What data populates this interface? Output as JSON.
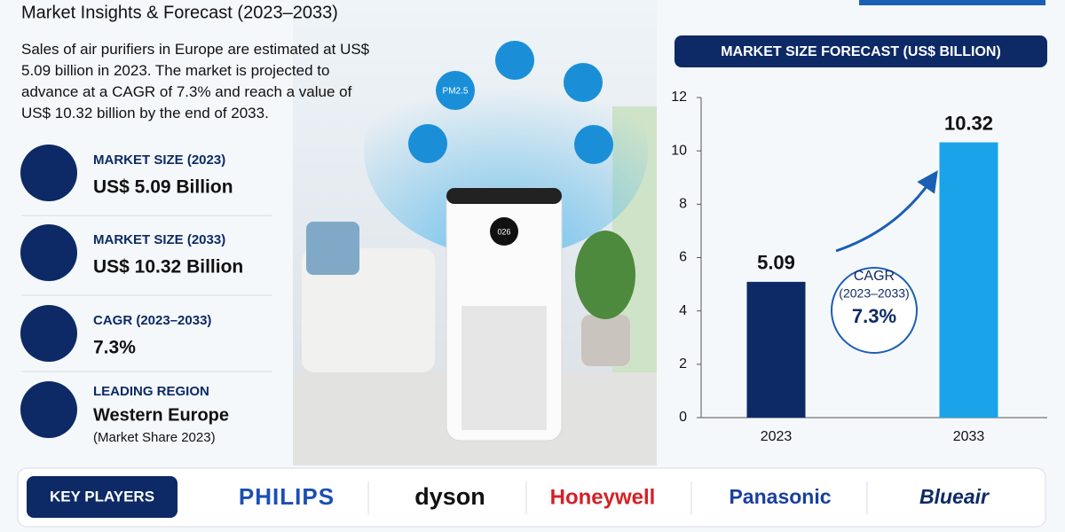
{
  "header": {
    "title": "Market Insights & Forecast (2023–2033)"
  },
  "description": "Sales of air purifiers in Europe are estimated at US$ 5.09 billion in 2023. The market is projected to advance at a CAGR of 7.3% and reach a value of US$ 10.32 billion by the end of 2033.",
  "stats": [
    {
      "label": "MARKET SIZE (2023)",
      "value": "US$ 5.09 Billion"
    },
    {
      "label": "MARKET SIZE (2033)",
      "value": "US$ 10.32 Billion"
    },
    {
      "label": "CAGR (2023–2033)",
      "value": "7.3%"
    },
    {
      "label": "LEADING REGION",
      "value": "Western Europe",
      "note": "(Market Share 2023)"
    }
  ],
  "illustration": {
    "icon_text": "PM2.5",
    "display": "026"
  },
  "chart_data": {
    "type": "bar",
    "title": "MARKET SIZE FORECAST (US$ BILLION)",
    "categories": [
      "2023",
      "2033"
    ],
    "values": [
      5.09,
      10.32
    ],
    "colors": [
      "#0d2a66",
      "#1aa3e8"
    ],
    "ylim": [
      0,
      12
    ],
    "yticks": [
      0,
      2,
      4,
      6,
      8,
      10,
      12
    ],
    "grid": false,
    "annotation": {
      "title": "CAGR",
      "period": "(2023–2033)",
      "value": "7.3%"
    }
  },
  "key_players": {
    "label": "KEY PLAYERS",
    "names": [
      "PHILIPS",
      "dyson",
      "Honeywell",
      "Panasonic",
      "Blueair"
    ]
  }
}
